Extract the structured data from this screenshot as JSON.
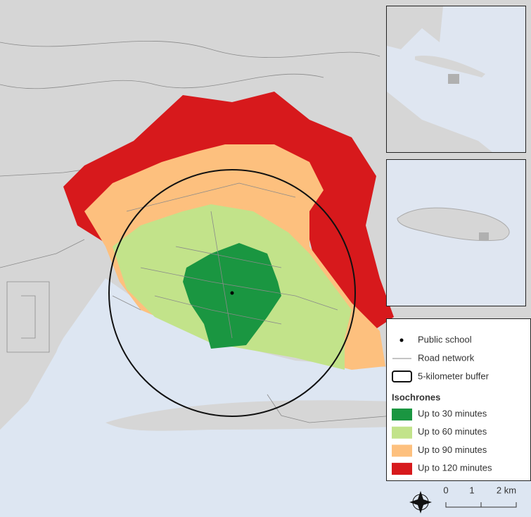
{
  "legend": {
    "items": [
      {
        "label": "Public school"
      },
      {
        "label": "Road network"
      },
      {
        "label": "5-kilometer buffer"
      }
    ],
    "title": "Isochrones",
    "isochrones": [
      {
        "label": "Up to 30 minutes",
        "color": "#1a9641"
      },
      {
        "label": "Up to 60 minutes",
        "color": "#c2e38a"
      },
      {
        "label": "Up to 90 minutes",
        "color": "#fdc07e"
      },
      {
        "label": "Up to 120 minutes",
        "color": "#d7191c"
      }
    ]
  },
  "scale_bar": {
    "labels": [
      "0",
      "1",
      "2 km"
    ]
  }
}
